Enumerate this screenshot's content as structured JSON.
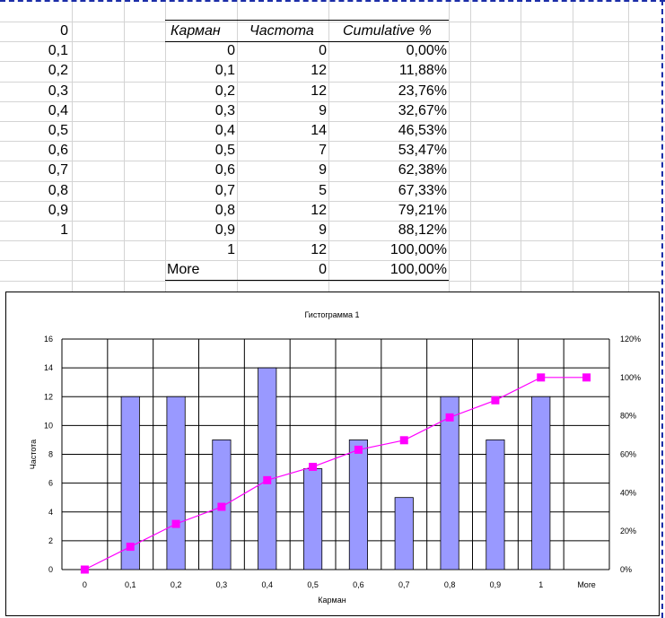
{
  "sheet": {
    "column_a": [
      "0",
      "0,1",
      "0,2",
      "0,3",
      "0,4",
      "0,5",
      "0,6",
      "0,7",
      "0,8",
      "0,9",
      "1"
    ],
    "table": {
      "headers": [
        "Карман",
        "Частота",
        "Cumulative %"
      ],
      "rows": [
        [
          "0",
          "0",
          "0,00%"
        ],
        [
          "0,1",
          "12",
          "11,88%"
        ],
        [
          "0,2",
          "12",
          "23,76%"
        ],
        [
          "0,3",
          "9",
          "32,67%"
        ],
        [
          "0,4",
          "14",
          "46,53%"
        ],
        [
          "0,5",
          "7",
          "53,47%"
        ],
        [
          "0,6",
          "9",
          "62,38%"
        ],
        [
          "0,7",
          "5",
          "67,33%"
        ],
        [
          "0,8",
          "12",
          "79,21%"
        ],
        [
          "0,9",
          "9",
          "88,12%"
        ],
        [
          "1",
          "12",
          "100,00%"
        ],
        [
          "More",
          "0",
          "100,00%"
        ]
      ]
    }
  },
  "chart_data": {
    "type": "bar",
    "title": "Гистограмма 1",
    "xlabel": "Карман",
    "ylabel": "Частота",
    "categories": [
      "0",
      "0,1",
      "0,2",
      "0,3",
      "0,4",
      "0,5",
      "0,6",
      "0,7",
      "0,8",
      "0,9",
      "1",
      "More"
    ],
    "series": [
      {
        "name": "Частота",
        "type": "bar",
        "axis": "left",
        "color": "#9999ff",
        "values": [
          0,
          12,
          12,
          9,
          14,
          7,
          9,
          5,
          12,
          9,
          12,
          0
        ]
      },
      {
        "name": "Cumulative %",
        "type": "line",
        "axis": "right",
        "color": "#ff00ff",
        "values": [
          0,
          11.88,
          23.76,
          32.67,
          46.53,
          53.47,
          62.38,
          67.33,
          79.21,
          88.12,
          100,
          100
        ]
      }
    ],
    "ylim": [
      0,
      16
    ],
    "yticks": [
      "0",
      "2",
      "4",
      "6",
      "8",
      "10",
      "12",
      "14",
      "16"
    ],
    "y2lim": [
      0,
      120
    ],
    "y2ticks": [
      "0%",
      "20%",
      "40%",
      "60%",
      "80%",
      "100%",
      "120%"
    ],
    "grid": true
  }
}
